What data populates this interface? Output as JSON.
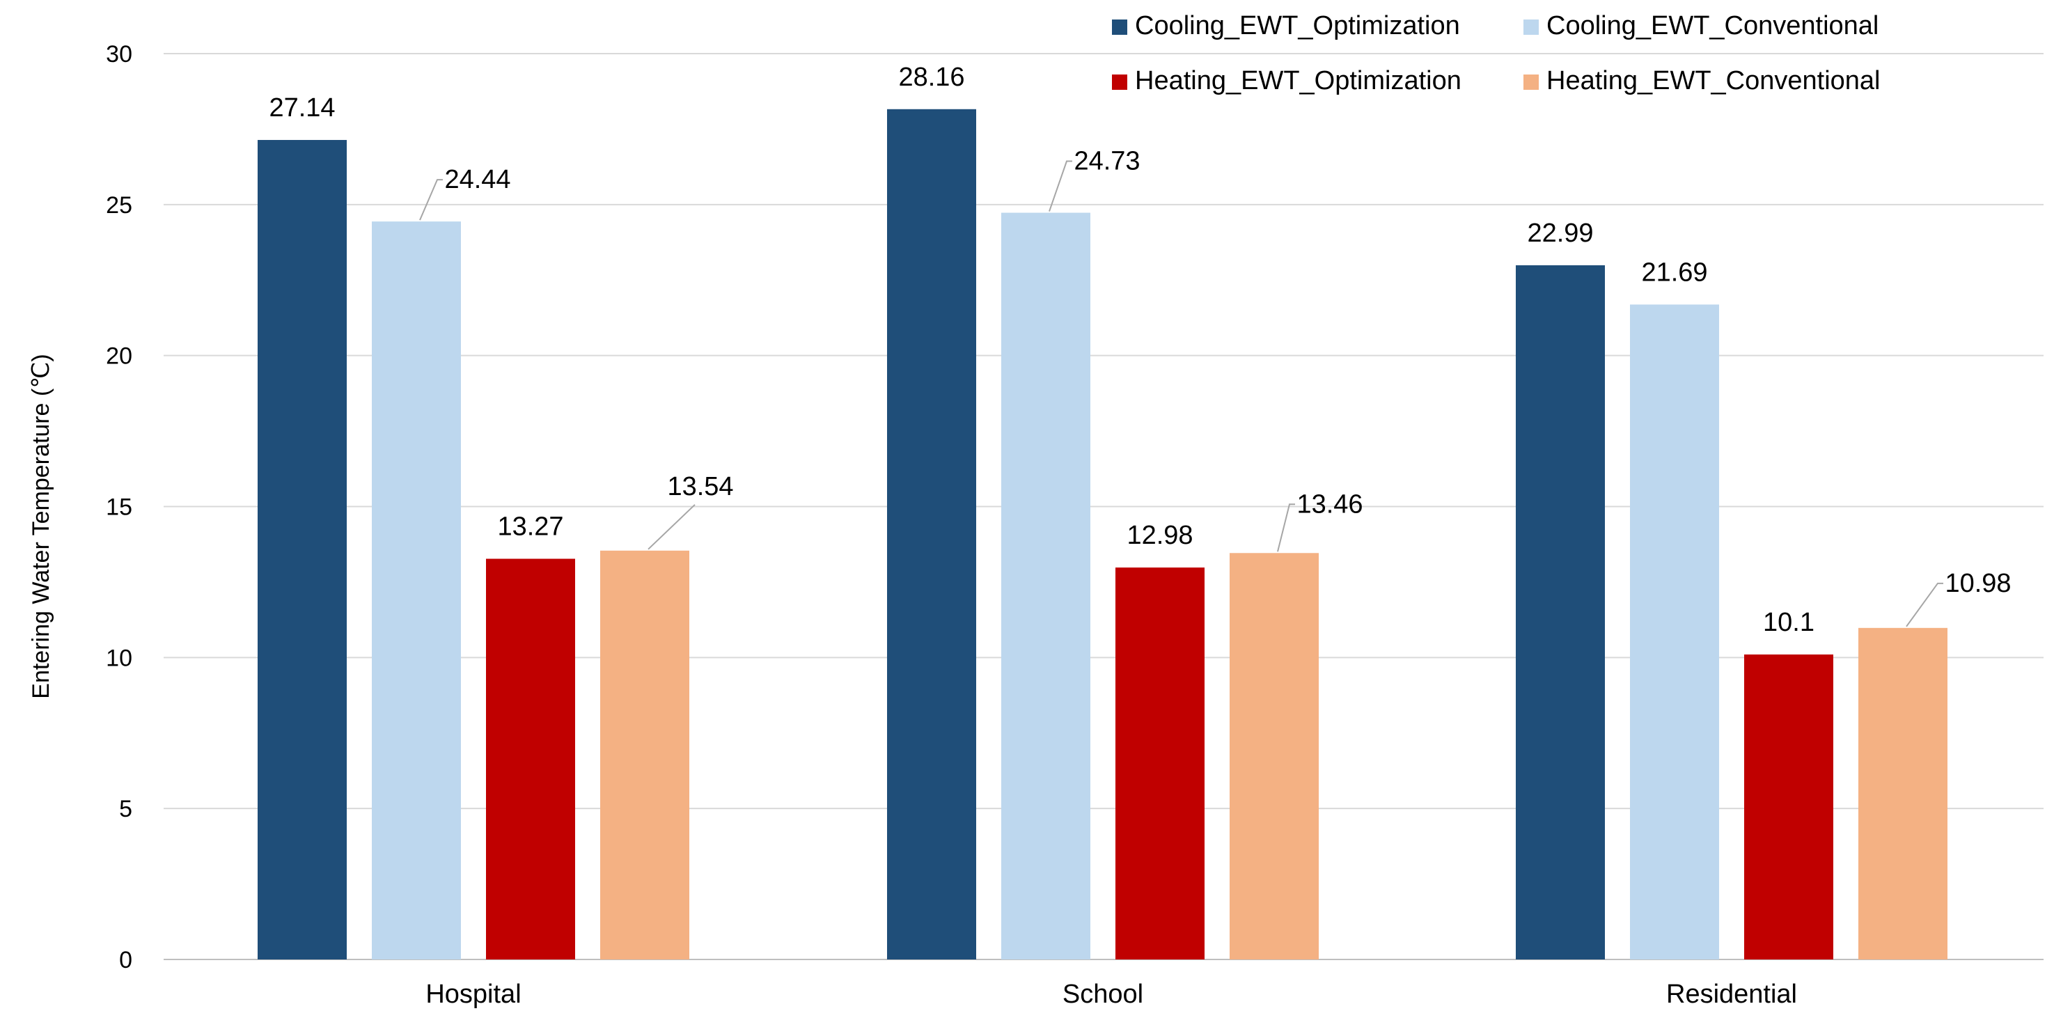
{
  "chart_data": {
    "type": "bar",
    "title": "",
    "xlabel": "",
    "ylabel": "Entering Water Temperature (℃)",
    "ylim": [
      0,
      30
    ],
    "yticks": [
      0,
      5,
      10,
      15,
      20,
      25,
      30
    ],
    "yticks_labels": [
      "0",
      "5",
      "10",
      "15",
      "20",
      "25",
      "30"
    ],
    "grid": true,
    "legend_position": "top-right",
    "categories": [
      "Hospital",
      "School",
      "Residential"
    ],
    "series": [
      {
        "name": "Cooling_EWT_Optimization",
        "color": "#1f4e79",
        "values": [
          27.14,
          28.16,
          22.99
        ],
        "value_labels": [
          "27.14",
          "28.16",
          "22.99"
        ]
      },
      {
        "name": "Cooling_EWT_Conventional",
        "color": "#bdd7ee",
        "values": [
          24.44,
          24.73,
          21.69
        ],
        "value_labels": [
          "24.44",
          "24.73",
          "21.69"
        ]
      },
      {
        "name": "Heating_EWT_Optimization",
        "color": "#c00000",
        "values": [
          13.27,
          12.98,
          10.1
        ],
        "value_labels": [
          "13.27",
          "12.98",
          "10.1"
        ]
      },
      {
        "name": "Heating_EWT_Conventional",
        "color": "#f4b183",
        "values": [
          13.54,
          13.46,
          10.98
        ],
        "value_labels": [
          "13.54",
          "13.46",
          "10.98"
        ]
      }
    ]
  }
}
